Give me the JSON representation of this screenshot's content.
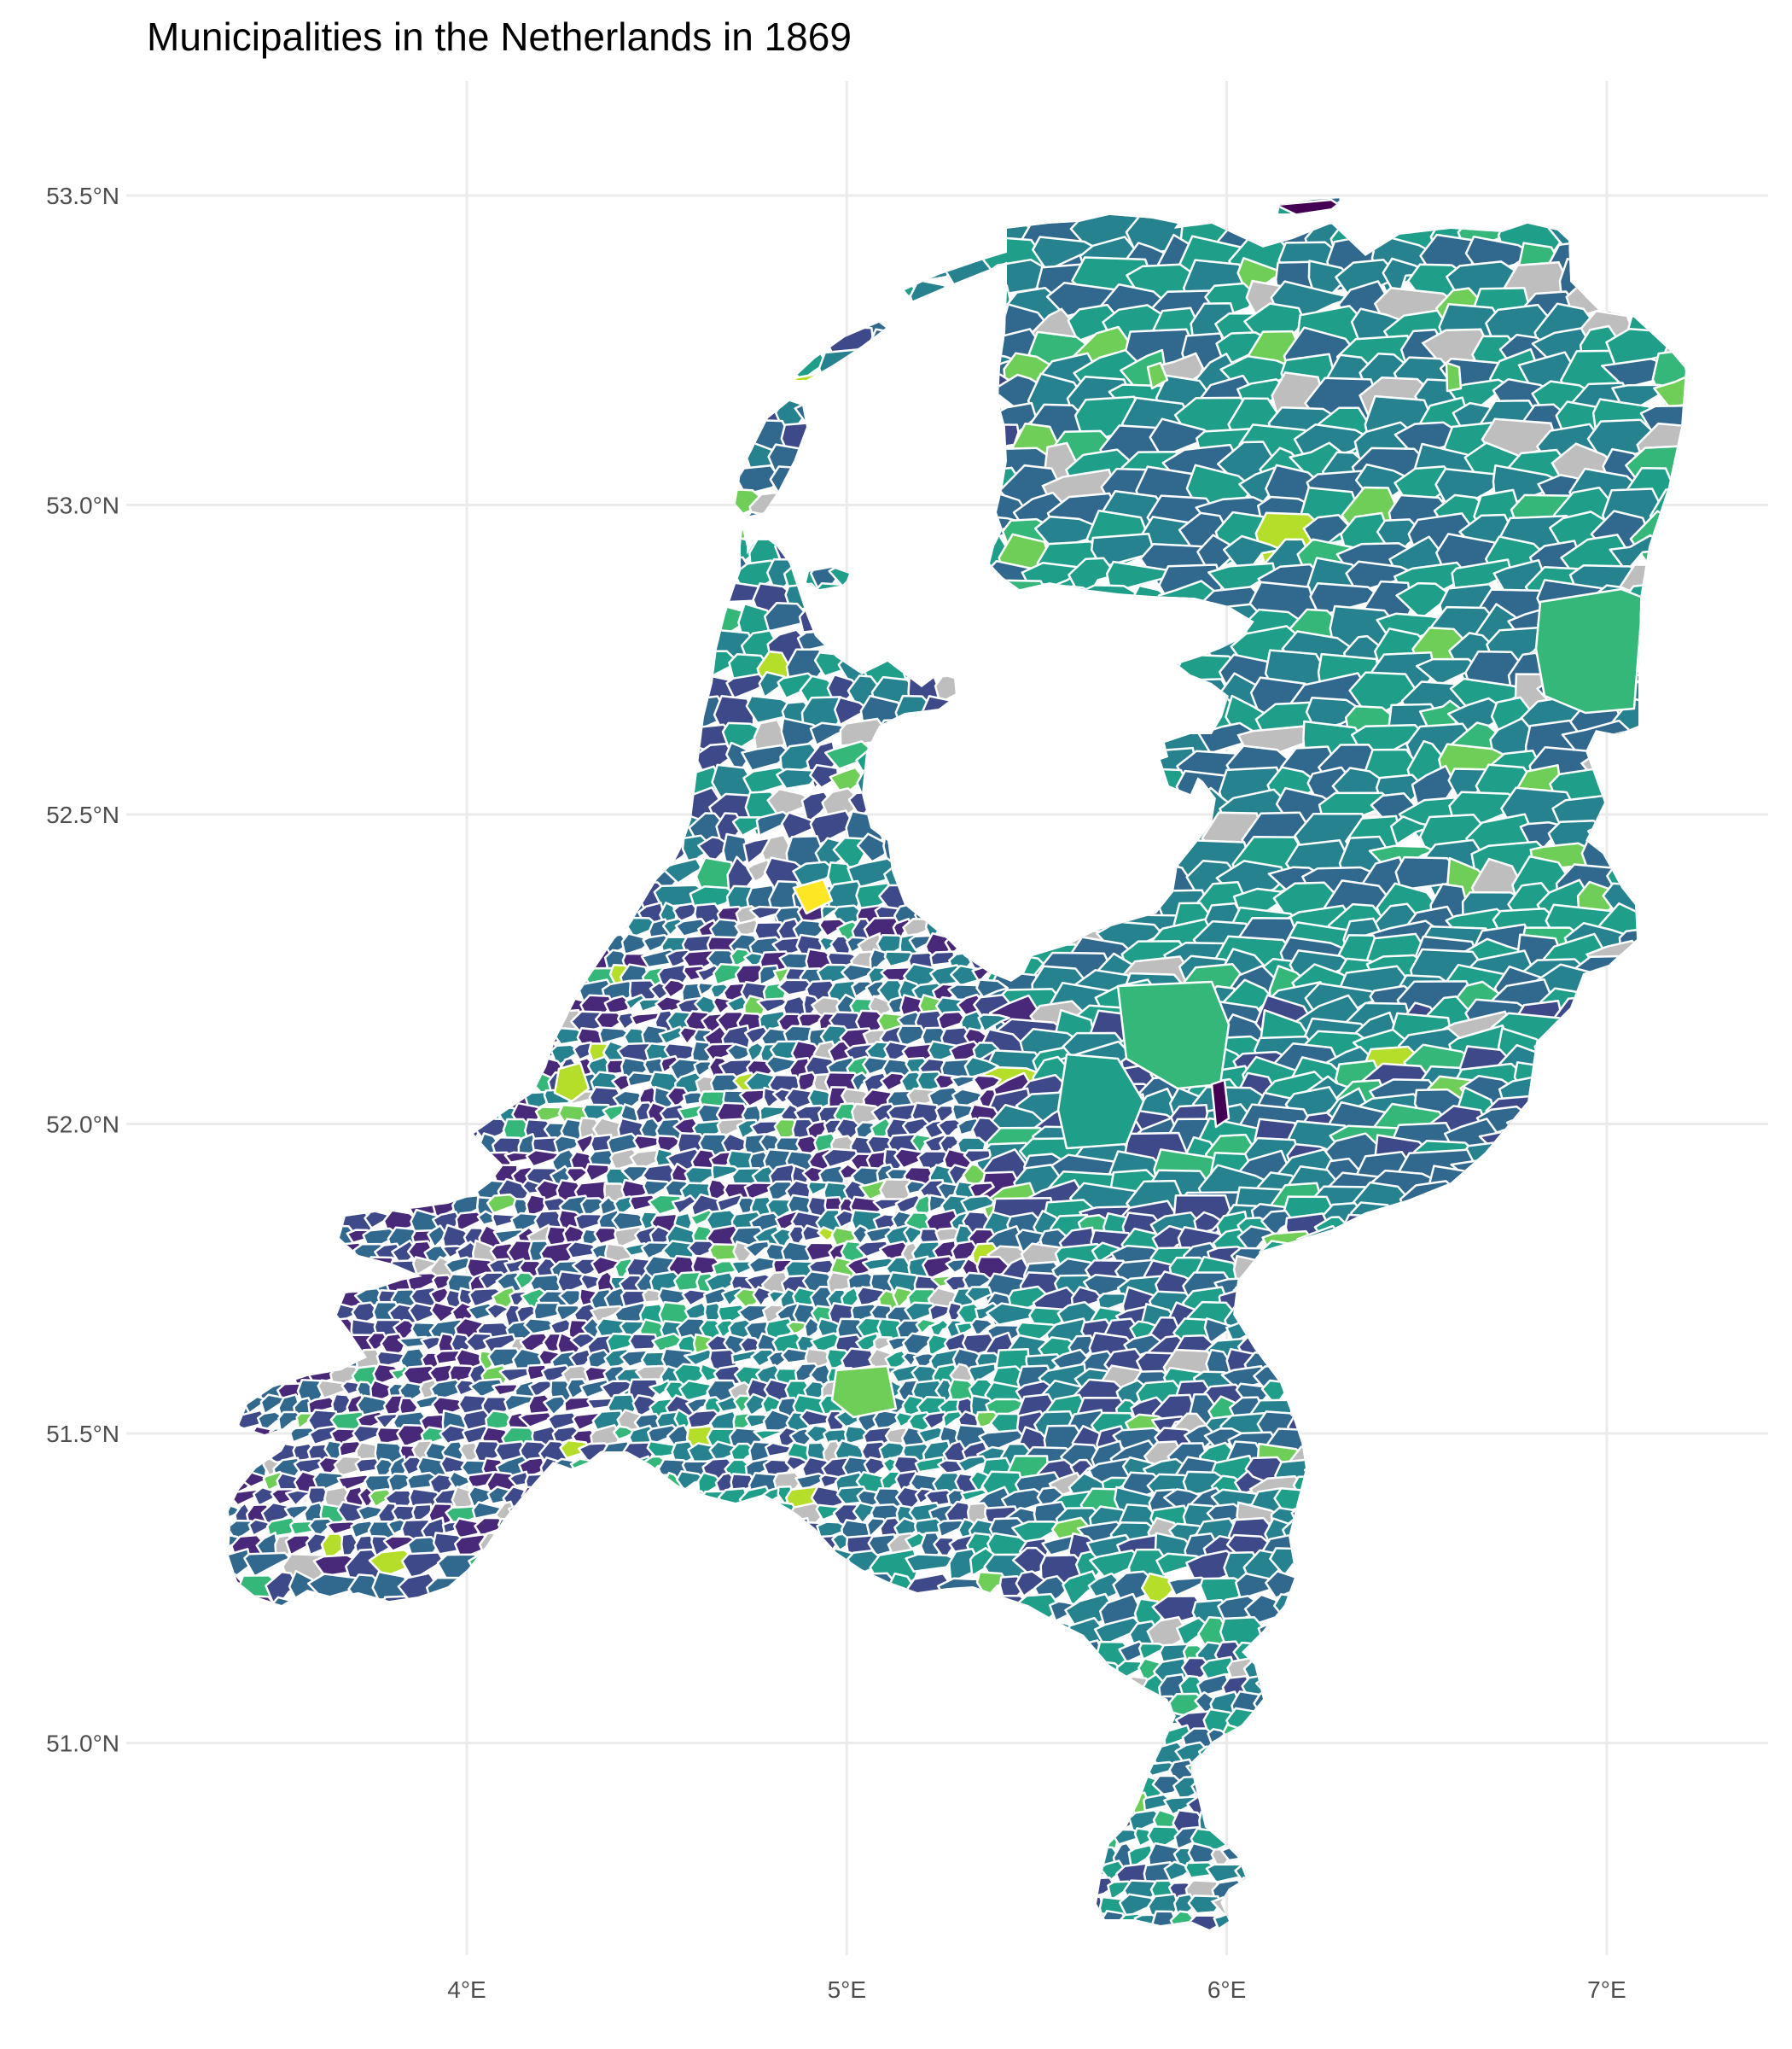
{
  "title": "Municipalities in the Netherlands in 1869",
  "axes": {
    "lat_ticks": [
      {
        "label": "53.5°N",
        "value": 53.5
      },
      {
        "label": "53.0°N",
        "value": 53.0
      },
      {
        "label": "52.5°N",
        "value": 52.5
      },
      {
        "label": "52.0°N",
        "value": 52.0
      },
      {
        "label": "51.5°N",
        "value": 51.5
      },
      {
        "label": "51.0°N",
        "value": 51.0
      }
    ],
    "lon_ticks": [
      {
        "label": "4°E",
        "value": 4
      },
      {
        "label": "5°E",
        "value": 5
      },
      {
        "label": "6°E",
        "value": 6
      },
      {
        "label": "7°E",
        "value": 7
      }
    ],
    "lon_range": [
      3.25,
      7.45
    ],
    "lat_range": [
      50.65,
      53.68
    ]
  },
  "colors": {
    "palette": "viridis",
    "missing": "#bebebe",
    "border": "#ffffff",
    "grid": "#ebebeb",
    "scale": [
      "#440154",
      "#482878",
      "#3e4989",
      "#31688e",
      "#26828e",
      "#1f9e89",
      "#35b779",
      "#6ece58",
      "#b5de2b",
      "#fde725"
    ]
  },
  "legend": "none"
}
